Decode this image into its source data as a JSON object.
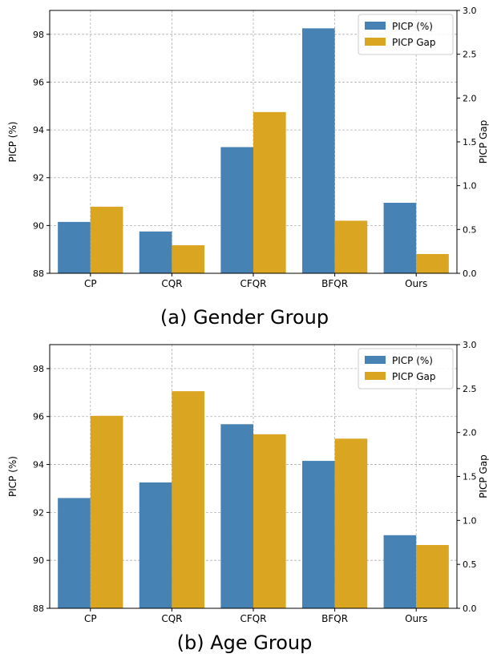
{
  "chart_data": [
    {
      "type": "bar",
      "caption": "(a) Gender Group",
      "categories": [
        "CP",
        "CQR",
        "CFQR",
        "BFQR",
        "Ours"
      ],
      "ylabel": "PICP (%)",
      "ylabel_right": "PICP Gap",
      "ylim": [
        88,
        99
      ],
      "ylim_right": [
        0,
        3.0
      ],
      "yticks": [
        "88",
        "90",
        "92",
        "94",
        "96",
        "98"
      ],
      "yticks_right": [
        "0.0",
        "0.5",
        "1.0",
        "1.5",
        "2.0",
        "2.5",
        "3.0"
      ],
      "grid": true,
      "legend_position": "top-right",
      "series": [
        {
          "name": "PICP (%)",
          "axis": "left",
          "color": "#4682b4",
          "values": [
            90.15,
            89.75,
            93.28,
            98.25,
            90.95
          ]
        },
        {
          "name": "PICP Gap",
          "axis": "right",
          "color": "#daa520",
          "values": [
            0.76,
            0.32,
            1.84,
            0.6,
            0.22
          ]
        }
      ]
    },
    {
      "type": "bar",
      "caption": "(b) Age Group",
      "categories": [
        "CP",
        "CQR",
        "CFQR",
        "BFQR",
        "Ours"
      ],
      "ylabel": "PICP (%)",
      "ylabel_right": "PICP Gap",
      "ylim": [
        88,
        99
      ],
      "ylim_right": [
        0,
        3.0
      ],
      "yticks": [
        "88",
        "90",
        "92",
        "94",
        "96",
        "98"
      ],
      "yticks_right": [
        "0.0",
        "0.5",
        "1.0",
        "1.5",
        "2.0",
        "2.5",
        "3.0"
      ],
      "grid": true,
      "legend_position": "top-right",
      "series": [
        {
          "name": "PICP (%)",
          "axis": "left",
          "color": "#4682b4",
          "values": [
            92.6,
            93.25,
            95.68,
            94.15,
            91.05
          ]
        },
        {
          "name": "PICP Gap",
          "axis": "right",
          "color": "#daa520",
          "values": [
            2.19,
            2.47,
            1.98,
            1.93,
            0.72
          ]
        }
      ]
    }
  ]
}
